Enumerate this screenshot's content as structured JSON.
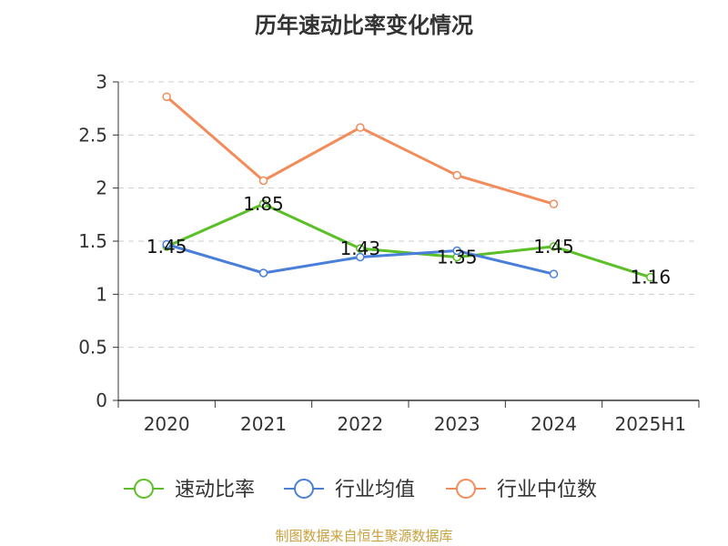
{
  "chart_data": {
    "type": "line",
    "title": "历年速动比率变化情况",
    "categories": [
      "2020",
      "2021",
      "2022",
      "2023",
      "2024",
      "2025H1"
    ],
    "ylim": [
      0,
      3
    ],
    "yticks": [
      "0",
      "0.5",
      "1",
      "1.5",
      "2",
      "2.5",
      "3"
    ],
    "grid": true,
    "legend_position": "bottom",
    "series": [
      {
        "name": "速动比率",
        "color": "#5bbf27",
        "values": [
          1.45,
          1.85,
          1.43,
          1.35,
          1.45,
          1.16
        ],
        "labels": [
          "1.45",
          "1.85",
          "1.43",
          "1.35",
          "1.45",
          "1.16"
        ]
      },
      {
        "name": "行业均值",
        "color": "#4a7fd9",
        "values": [
          1.47,
          1.2,
          1.35,
          1.41,
          1.19,
          null
        ]
      },
      {
        "name": "行业中位数",
        "color": "#f28c5a",
        "values": [
          2.86,
          2.07,
          2.57,
          2.12,
          1.85,
          null
        ]
      }
    ]
  },
  "footer": {
    "source": "制图数据来自恒生聚源数据库"
  }
}
